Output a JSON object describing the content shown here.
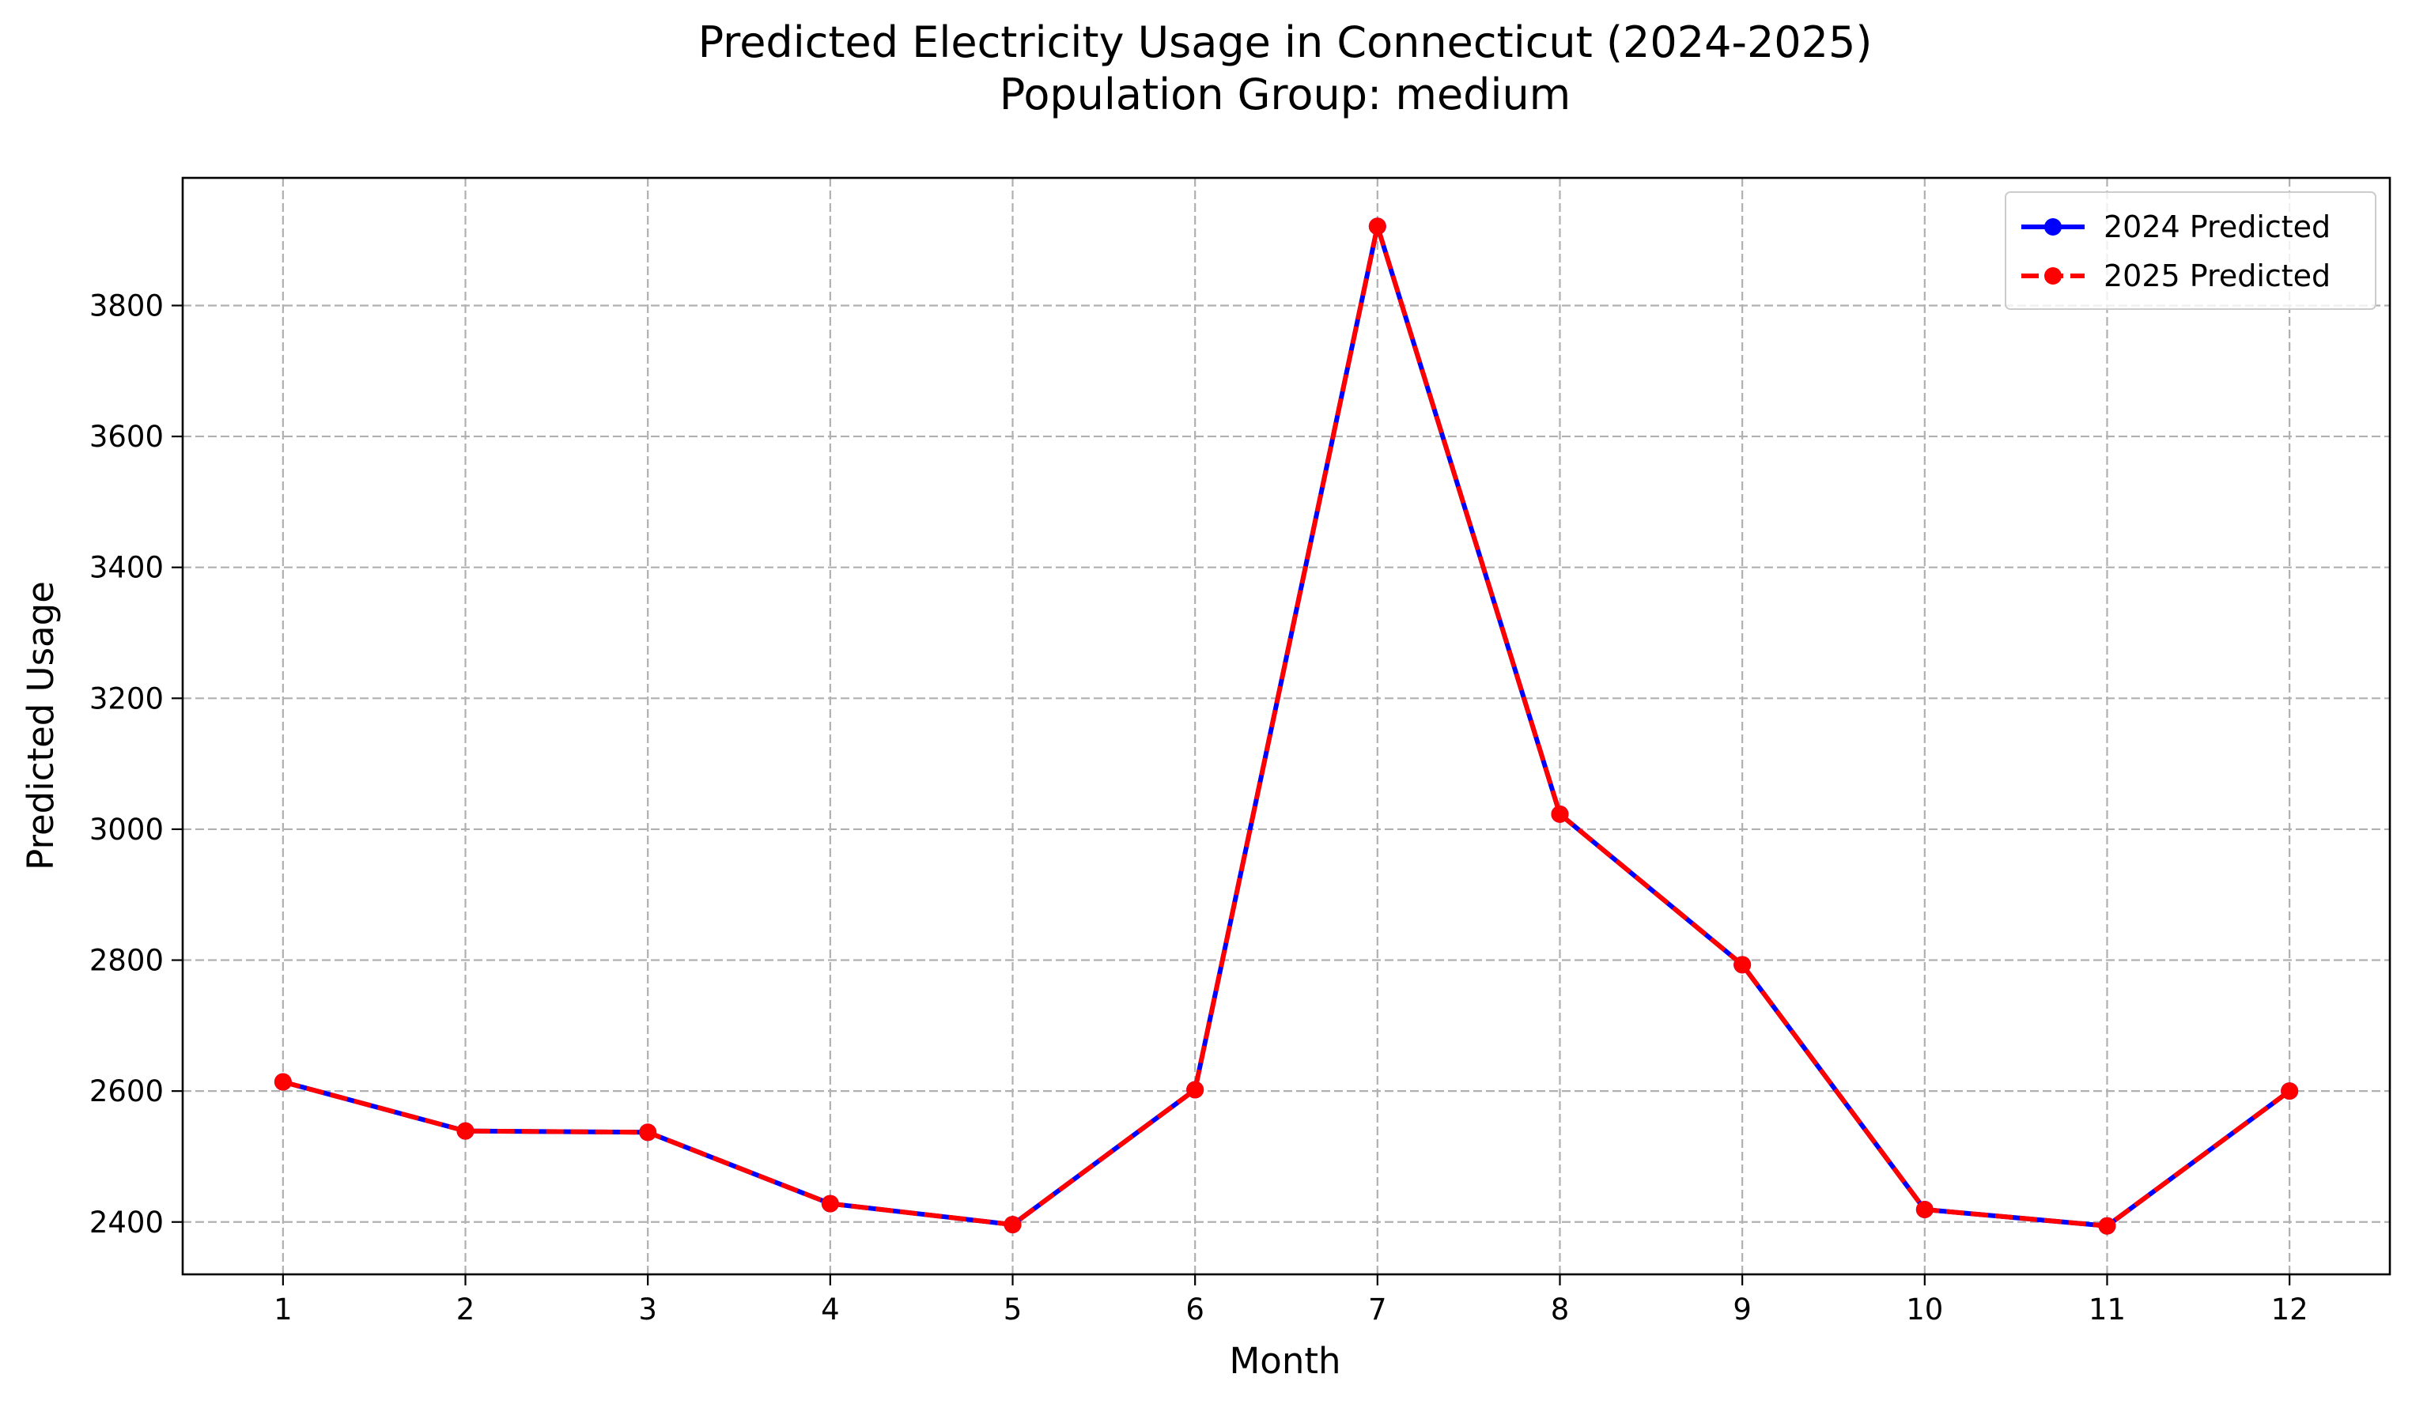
{
  "chart_data": {
    "type": "line",
    "title": "Predicted Electricity Usage in Connecticut (2024-2025)",
    "subtitle": "Population Group: medium",
    "xlabel": "Month",
    "ylabel": "Predicted Usage",
    "x": [
      1,
      2,
      3,
      4,
      5,
      6,
      7,
      8,
      9,
      10,
      11,
      12
    ],
    "xlim": [
      0.45,
      12.55
    ],
    "ylim": [
      2320,
      3995
    ],
    "yticks": [
      2400,
      2600,
      2800,
      3000,
      3200,
      3400,
      3600,
      3800
    ],
    "grid": true,
    "legend_position": "top-right",
    "series": [
      {
        "name": "2024 Predicted",
        "color": "#0000ff",
        "line_style": "solid",
        "marker": "circle",
        "values": [
          2614,
          2539,
          2537,
          2428,
          2396,
          2602,
          3921,
          3023,
          2793,
          2419,
          2394,
          2600
        ]
      },
      {
        "name": "2025 Predicted",
        "color": "#ff0000",
        "line_style": "dashed",
        "marker": "circle",
        "values": [
          2614,
          2539,
          2537,
          2428,
          2396,
          2602,
          3921,
          3023,
          2793,
          2419,
          2394,
          2600
        ]
      }
    ]
  }
}
